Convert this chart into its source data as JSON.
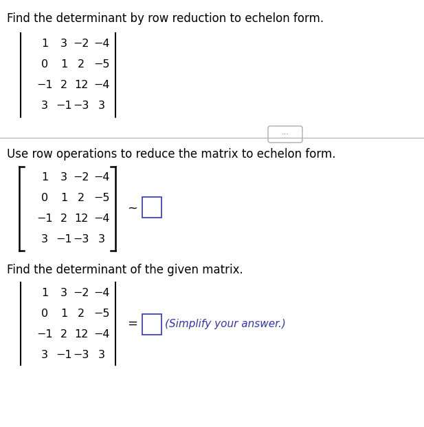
{
  "background_color": "#ffffff",
  "title_text": "Find the determinant by row reduction to echelon form.",
  "matrix": [
    [
      "1",
      "3",
      "−2",
      "−4"
    ],
    [
      "0",
      "1",
      "2",
      "−5"
    ],
    [
      "−1",
      "2",
      "12",
      "−4"
    ],
    [
      "3",
      "−1",
      "−3",
      "3"
    ]
  ],
  "section2_text": "Use row operations to reduce the matrix to echelon form.",
  "section3_text": "Find the determinant of the given matrix.",
  "simplify_text": "(Simplify your answer.)",
  "matrix_color": "#000000",
  "text_color": "#000000",
  "blue_color": "#3333bb",
  "box_color": "#3333bb",
  "divider_color": "#aaaaaa",
  "dots_color": "#555555",
  "title_fontsize": 12,
  "matrix_fontsize": 11.5,
  "section_fontsize": 12,
  "simplify_fontsize": 11
}
